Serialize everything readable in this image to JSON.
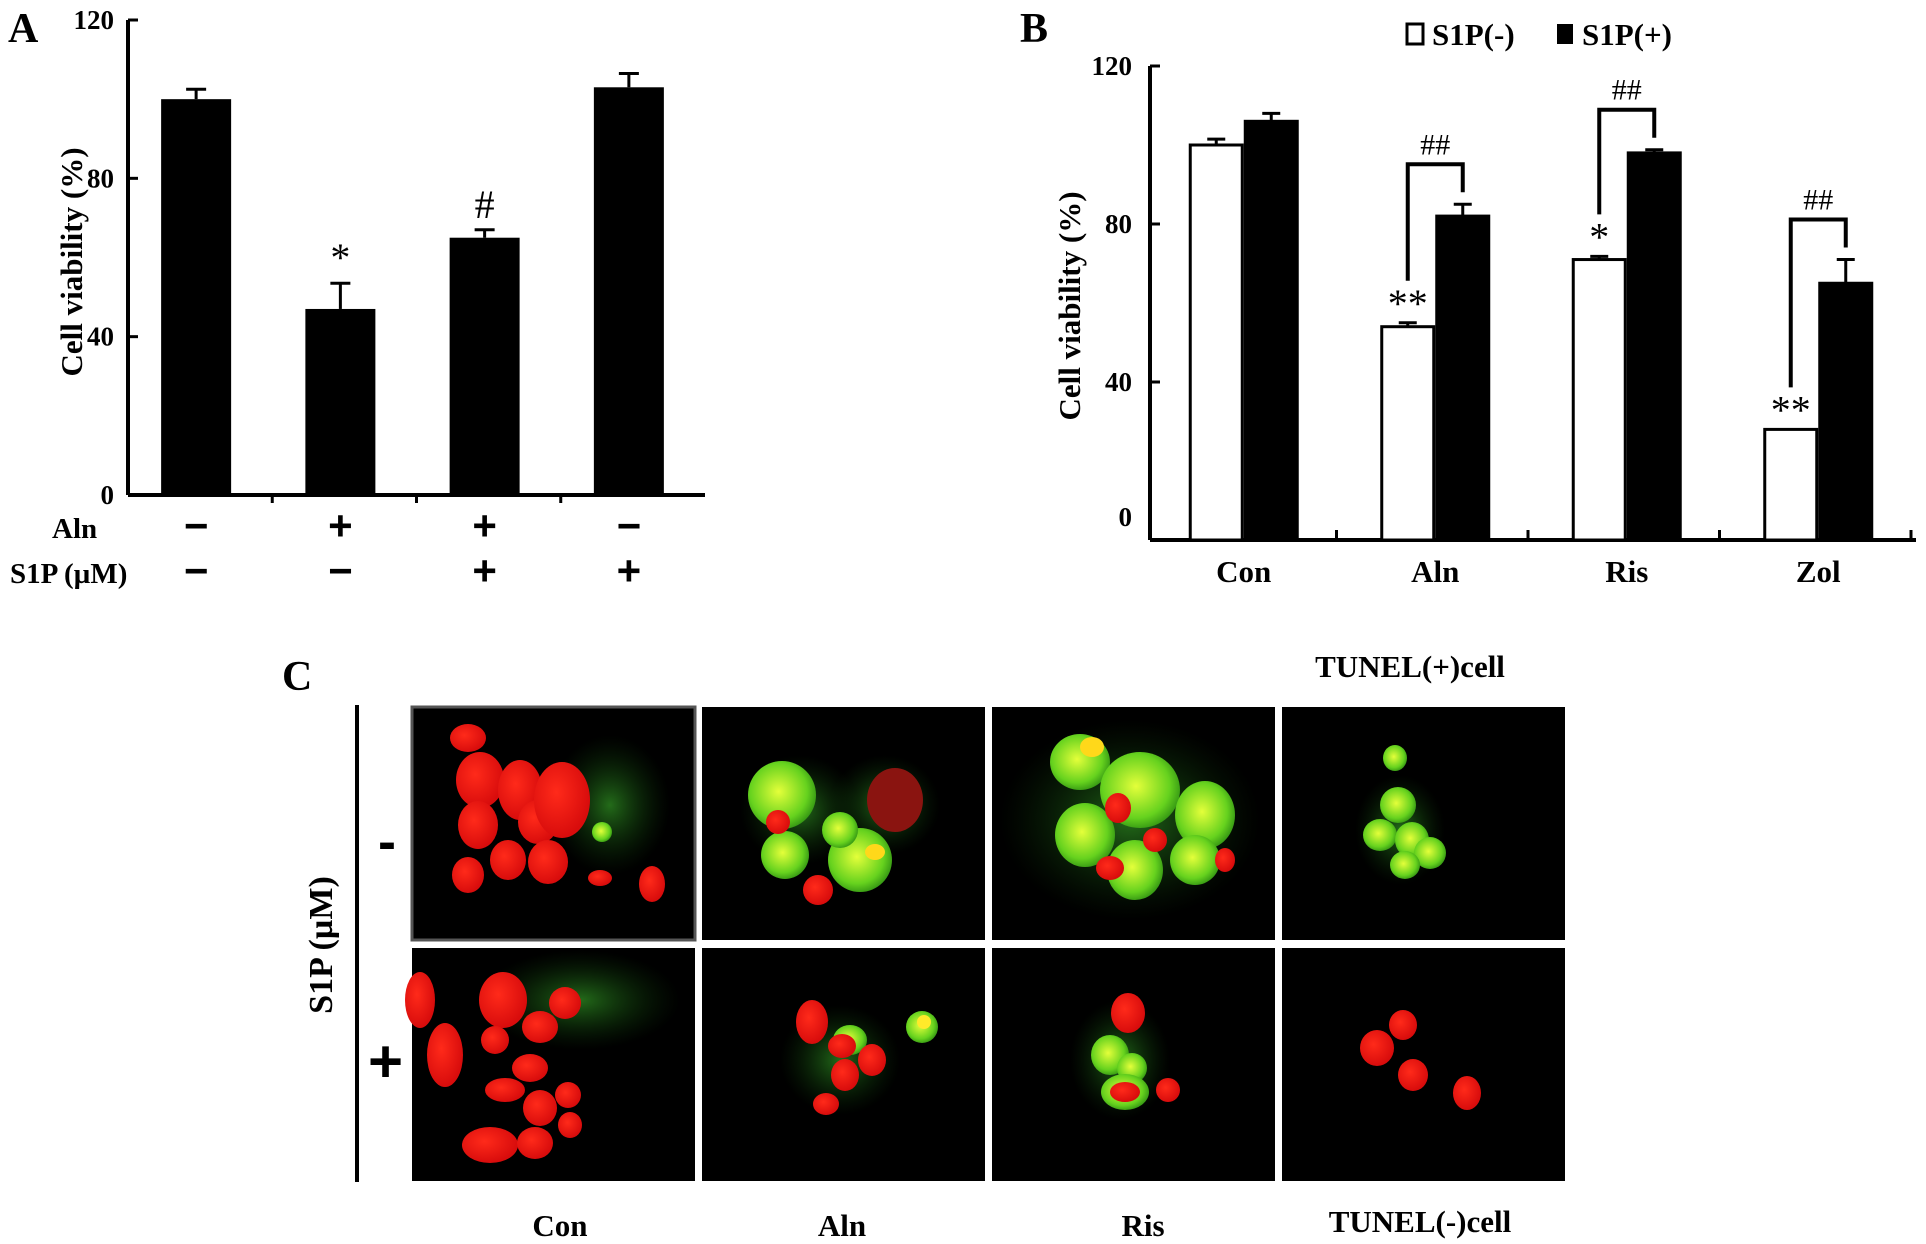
{
  "panels": {
    "a": {
      "letter": "A"
    },
    "b": {
      "letter": "B"
    },
    "c": {
      "letter": "C",
      "ylabel": "S1P (µM)",
      "row_labels": [
        "-",
        "+"
      ],
      "col_labels": [
        "Con",
        "Aln",
        "Ris",
        "TUNEL(-)cell"
      ],
      "top_label": "TUNEL(+)cell"
    }
  },
  "chart_data": [
    {
      "id": "A",
      "type": "bar",
      "ylabel": "Cell viability (%)",
      "ylim": [
        0,
        120
      ],
      "yticks": [
        "0",
        "40",
        "80",
        "120"
      ],
      "ytick_values": [
        0,
        40,
        80,
        120
      ],
      "values": [
        100,
        47,
        65,
        103
      ],
      "errors": [
        2.5,
        6.5,
        2,
        3.5
      ],
      "significance": [
        "",
        "*",
        "#",
        ""
      ],
      "conditions": [
        {
          "label": "Aln",
          "signs": [
            "−",
            "+",
            "+",
            "−"
          ]
        },
        {
          "label": "S1P (µM)",
          "signs": [
            "−",
            "−",
            "+",
            "+"
          ]
        }
      ],
      "bar_color": "#000000"
    },
    {
      "id": "B",
      "type": "bar",
      "ylabel": "Cell viability (%)",
      "ylim": [
        0,
        120
      ],
      "yticks": [
        "0",
        "40",
        "80",
        "120"
      ],
      "ytick_values": [
        0,
        40,
        80,
        120
      ],
      "categories": [
        "Con",
        "Aln",
        "Ris",
        "Zol"
      ],
      "legend": "top",
      "series": [
        {
          "name": "S1P(-)",
          "color": "#ffffff",
          "values": [
            100,
            54,
            71,
            28
          ],
          "errors": [
            1.5,
            1,
            0.8,
            0
          ],
          "significance": [
            "",
            "**",
            "*",
            "**"
          ]
        },
        {
          "name": "S1P(+)",
          "color": "#000000",
          "values": [
            106,
            82,
            98,
            65
          ],
          "errors": [
            2,
            3,
            0.8,
            6
          ],
          "significance": [
            "",
            "",
            "",
            ""
          ]
        }
      ],
      "brackets": [
        "",
        "##",
        "##",
        "##"
      ]
    }
  ]
}
